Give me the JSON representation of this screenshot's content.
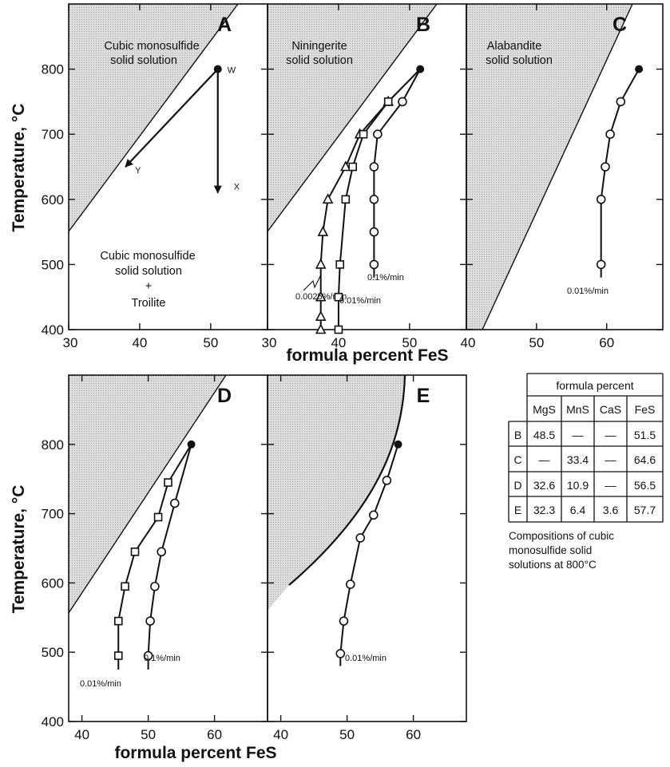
{
  "chart_data": [
    {
      "type": "line",
      "panel": "A",
      "label": "A",
      "xlabel": "formula percent FeS",
      "ylabel": "Temperature, °C",
      "xlim": [
        30,
        58
      ],
      "ylim": [
        400,
        900
      ],
      "xticks": [
        30,
        40,
        50
      ],
      "yticks": [
        400,
        500,
        600,
        700,
        800
      ],
      "region_labels": [
        "Cubic monosulfide",
        "solid solution",
        "Cubic monosulfide",
        "solid solution",
        "+",
        "Troilite"
      ],
      "point_labels": [
        "W",
        "X",
        "Y"
      ],
      "series": [
        {
          "marker": "arrow",
          "x": [
            51,
            51
          ],
          "y": [
            800,
            610
          ]
        },
        {
          "marker": "arrow",
          "x": [
            51,
            38
          ],
          "y": [
            800,
            650
          ]
        }
      ]
    },
    {
      "type": "line",
      "panel": "B",
      "label": "B",
      "xlabel": "formula percent FeS",
      "ylabel": "",
      "xlim": [
        30,
        58
      ],
      "ylim": [
        400,
        900
      ],
      "xticks": [
        30,
        40,
        50
      ],
      "yticks": [
        400,
        500,
        600,
        700,
        800
      ],
      "region_labels": [
        "Niningerite",
        "solid solution"
      ],
      "start_point": [
        51.5,
        800
      ],
      "series": [
        {
          "name": "0.0025%/min",
          "marker": "triangle",
          "x": [
            47.0,
            43.0,
            41.0,
            38.5,
            37.8,
            37.5,
            37.5,
            37.5,
            37.5
          ],
          "y": [
            750,
            700,
            650,
            600,
            550,
            500,
            450,
            420,
            400
          ]
        },
        {
          "name": "0.01%/min",
          "marker": "square",
          "x": [
            47.0,
            43.5,
            42.0,
            41.0,
            40.2,
            40.0,
            40.0
          ],
          "y": [
            750,
            700,
            650,
            600,
            500,
            450,
            400
          ]
        },
        {
          "name": "0.1%/min",
          "marker": "circle",
          "x": [
            49.0,
            45.5,
            45.0,
            45.0,
            45.0,
            45.0,
            45.0
          ],
          "y": [
            750,
            700,
            650,
            600,
            550,
            500,
            480
          ]
        }
      ]
    },
    {
      "type": "line",
      "panel": "C",
      "label": "C",
      "xlabel": "formula percent FeS",
      "ylabel": "",
      "xlim": [
        40,
        68
      ],
      "ylim": [
        400,
        900
      ],
      "xticks": [
        40,
        50,
        60
      ],
      "yticks": [
        400,
        500,
        600,
        700,
        800
      ],
      "region_labels": [
        "Alabandite",
        "solid solution"
      ],
      "start_point": [
        64.6,
        800
      ],
      "series": [
        {
          "name": "0.01%/min",
          "marker": "circle",
          "x": [
            62.0,
            60.5,
            59.8,
            59.2,
            59.2,
            59.2
          ],
          "y": [
            750,
            700,
            650,
            600,
            500,
            480
          ]
        }
      ]
    },
    {
      "type": "line",
      "panel": "D",
      "label": "D",
      "xlabel": "formula percent FeS",
      "ylabel": "Temperature, °C",
      "xlim": [
        38,
        68
      ],
      "ylim": [
        400,
        900
      ],
      "xticks": [
        40,
        50,
        60
      ],
      "yticks": [
        400,
        500,
        600,
        700,
        800
      ],
      "start_point": [
        56.5,
        800
      ],
      "series": [
        {
          "name": "0.01%/min",
          "marker": "square",
          "x": [
            53.0,
            51.5,
            48.0,
            46.5,
            45.5,
            45.5,
            45.5
          ],
          "y": [
            745,
            695,
            645,
            595,
            545,
            495,
            475
          ]
        },
        {
          "name": "0.1%/min",
          "marker": "circle",
          "x": [
            54.0,
            52.0,
            51.0,
            50.3,
            50.0,
            50.0
          ],
          "y": [
            715,
            645,
            595,
            545,
            495,
            475
          ]
        }
      ]
    },
    {
      "type": "line",
      "panel": "E",
      "label": "E",
      "xlabel": "formula percent FeS",
      "ylabel": "",
      "xlim": [
        38,
        68
      ],
      "ylim": [
        400,
        900
      ],
      "xticks": [
        40,
        50,
        60
      ],
      "yticks": [
        400,
        500,
        600,
        700,
        800
      ],
      "start_point": [
        57.7,
        800
      ],
      "series": [
        {
          "name": "0.01%/min",
          "marker": "circle",
          "x": [
            56.0,
            54.0,
            52.0,
            50.5,
            49.5,
            49.0,
            49.0
          ],
          "y": [
            748,
            698,
            665,
            598,
            545,
            498,
            480
          ]
        }
      ]
    },
    {
      "type": "table",
      "title": "formula percent",
      "columns": [
        "",
        "MgS",
        "MnS",
        "CaS",
        "FeS"
      ],
      "rows": [
        [
          "B",
          "48.5",
          "—",
          "—",
          "51.5"
        ],
        [
          "C",
          "—",
          "33.4",
          "—",
          "64.6"
        ],
        [
          "D",
          "32.6",
          "10.9",
          "—",
          "56.5"
        ],
        [
          "E",
          "32.3",
          "6.4",
          "3.6",
          "57.7"
        ]
      ],
      "caption": [
        "Compositions of cubic",
        "monosulfide solid",
        "solutions at 800°C"
      ]
    }
  ],
  "colors": {
    "ink": "#111111",
    "stipple": "#d8d8d8",
    "background": "#ffffff"
  }
}
